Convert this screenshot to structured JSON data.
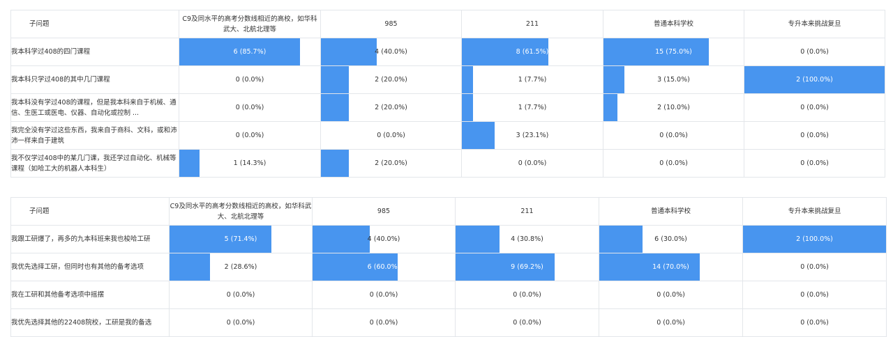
{
  "tables": [
    {
      "header": {
        "question": "子问题",
        "columns": [
          "C9及同水平的高考分数线相近的高校，如华科武大、北航北理等",
          "985",
          "211",
          "普通本科学校",
          "专升本来挑战复旦"
        ]
      },
      "rows": [
        {
          "label": "我本科学过408的四门课程",
          "cells": [
            {
              "text": "6 (85.7%)",
              "pct": 85.7
            },
            {
              "text": "4 (40.0%)",
              "pct": 40.0
            },
            {
              "text": "8 (61.5%)",
              "pct": 61.5
            },
            {
              "text": "15 (75.0%)",
              "pct": 75.0
            },
            {
              "text": "0 (0.0%)",
              "pct": 0
            }
          ]
        },
        {
          "label": "我本科只学过408的其中几门课程",
          "cells": [
            {
              "text": "0 (0.0%)",
              "pct": 0
            },
            {
              "text": "2 (20.0%)",
              "pct": 20.0
            },
            {
              "text": "1 (7.7%)",
              "pct": 7.7
            },
            {
              "text": "3 (15.0%)",
              "pct": 15.0
            },
            {
              "text": "2 (100.0%)",
              "pct": 100.0
            }
          ]
        },
        {
          "label": "我本科没有学过408的课程，但是我本科来自于机械、通信、生医工或医电、仪器、自动化或控制 ...",
          "cells": [
            {
              "text": "0 (0.0%)",
              "pct": 0
            },
            {
              "text": "2 (20.0%)",
              "pct": 20.0
            },
            {
              "text": "1 (7.7%)",
              "pct": 7.7
            },
            {
              "text": "2 (10.0%)",
              "pct": 10.0
            },
            {
              "text": "0 (0.0%)",
              "pct": 0
            }
          ]
        },
        {
          "label": "我完全没有学过这些东西，我来自于商科、文科，或和沛沛一样来自于建筑",
          "cells": [
            {
              "text": "0 (0.0%)",
              "pct": 0
            },
            {
              "text": "0 (0.0%)",
              "pct": 0
            },
            {
              "text": "3 (23.1%)",
              "pct": 23.1
            },
            {
              "text": "0 (0.0%)",
              "pct": 0
            },
            {
              "text": "0 (0.0%)",
              "pct": 0
            }
          ]
        },
        {
          "label": "我不仅学过408中的某几门课，我还学过自动化、机械等课程（如哈工大的机器人本科生）",
          "cells": [
            {
              "text": "1 (14.3%)",
              "pct": 14.3
            },
            {
              "text": "2 (20.0%)",
              "pct": 20.0
            },
            {
              "text": "0 (0.0%)",
              "pct": 0
            },
            {
              "text": "0 (0.0%)",
              "pct": 0
            },
            {
              "text": "0 (0.0%)",
              "pct": 0
            }
          ]
        }
      ]
    },
    {
      "header": {
        "question": "子问题",
        "columns": [
          "C9及同水平的高考分数线相近的高校，如华科武大、北航北理等",
          "985",
          "211",
          "普通本科学校",
          "专升本来挑战复旦"
        ]
      },
      "rows": [
        {
          "label": "我跟工研爆了，再多的九本科班来我也梭哈工研",
          "cells": [
            {
              "text": "5 (71.4%)",
              "pct": 71.4
            },
            {
              "text": "4 (40.0%)",
              "pct": 40.0
            },
            {
              "text": "4 (30.8%)",
              "pct": 30.8
            },
            {
              "text": "6 (30.0%)",
              "pct": 30.0
            },
            {
              "text": "2 (100.0%)",
              "pct": 100.0
            }
          ]
        },
        {
          "label": "我优先选择工研，但同时也有其他的备考选项",
          "cells": [
            {
              "text": "2 (28.6%)",
              "pct": 28.6
            },
            {
              "text": "6 (60.0%)",
              "pct": 60.0
            },
            {
              "text": "9 (69.2%)",
              "pct": 69.2
            },
            {
              "text": "14 (70.0%)",
              "pct": 70.0
            },
            {
              "text": "0 (0.0%)",
              "pct": 0
            }
          ]
        },
        {
          "label": "我在工研和其他备考选项中摇摆",
          "cells": [
            {
              "text": "0 (0.0%)",
              "pct": 0
            },
            {
              "text": "0 (0.0%)",
              "pct": 0
            },
            {
              "text": "0 (0.0%)",
              "pct": 0
            },
            {
              "text": "0 (0.0%)",
              "pct": 0
            },
            {
              "text": "0 (0.0%)",
              "pct": 0
            }
          ]
        },
        {
          "label": "我优先选择其他的22408院校，工研是我的备选",
          "cells": [
            {
              "text": "0 (0.0%)",
              "pct": 0
            },
            {
              "text": "0 (0.0%)",
              "pct": 0
            },
            {
              "text": "0 (0.0%)",
              "pct": 0
            },
            {
              "text": "0 (0.0%)",
              "pct": 0
            },
            {
              "text": "0 (0.0%)",
              "pct": 0
            }
          ]
        }
      ]
    }
  ],
  "colors": {
    "bar": "#4895ef",
    "border": "#e3e6ea",
    "text": "#333333",
    "bar_text": "#ffffff"
  }
}
